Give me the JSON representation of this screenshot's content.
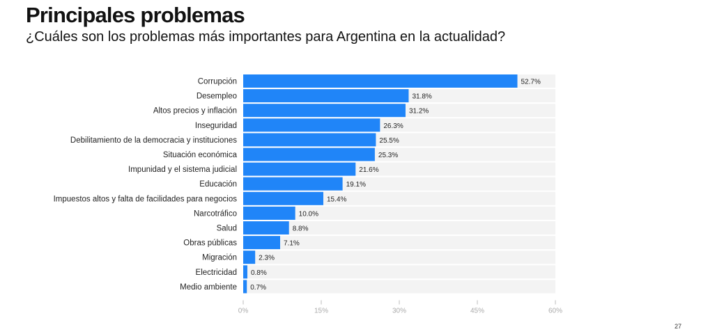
{
  "header": {
    "title": "Principales problemas",
    "subtitle": "¿Cuáles son los problemas más importantes para Argentina en la actualidad?"
  },
  "footer": {
    "page_number": "27"
  },
  "colors": {
    "bar": "#2085f8",
    "track": "#f3f3f3",
    "tick": "#bbbbbb"
  },
  "chart_data": {
    "type": "bar",
    "orientation": "horizontal",
    "title": "Principales problemas",
    "subtitle": "¿Cuáles son los problemas más importantes para Argentina en la actualidad?",
    "xlabel": "",
    "ylabel": "",
    "categories": [
      "Corrupción",
      "Desempleo",
      "Altos precios y inflación",
      "Inseguridad",
      "Debilitamiento de la democracia y instituciones",
      "Situación económica",
      "Impunidad y el sistema judicial",
      "Educación",
      "Impuestos altos y falta de facilidades para negocios",
      "Narcotráfico",
      "Salud",
      "Obras públicas",
      "Migración",
      "Electricidad",
      "Medio ambiente"
    ],
    "values": [
      52.7,
      31.8,
      31.2,
      26.3,
      25.5,
      25.3,
      21.6,
      19.1,
      15.4,
      10.0,
      8.8,
      7.1,
      2.3,
      0.8,
      0.7
    ],
    "value_labels": [
      "52.7%",
      "31.8%",
      "31.2%",
      "26.3%",
      "25.5%",
      "25.3%",
      "21.6%",
      "19.1%",
      "15.4%",
      "10.0%",
      "8.8%",
      "7.1%",
      "2.3%",
      "0.8%",
      "0.7%"
    ],
    "xlim": [
      0,
      60
    ],
    "xticks": [
      0,
      15,
      30,
      45,
      60
    ],
    "xtick_labels": [
      "0%",
      "15%",
      "30%",
      "45%",
      "60%"
    ],
    "grid": false,
    "legend": "none"
  }
}
